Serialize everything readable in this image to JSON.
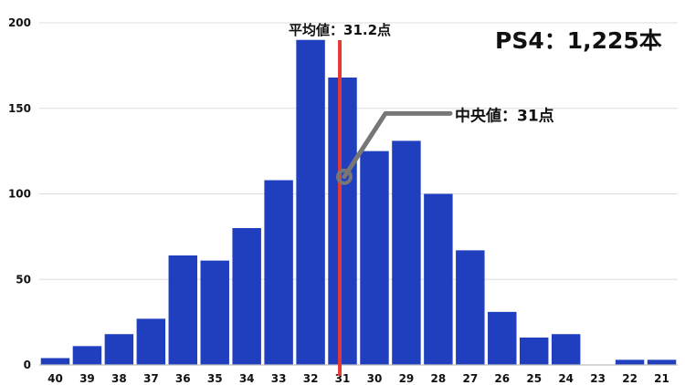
{
  "chart_data": {
    "type": "bar",
    "title": "PS4：1,225本",
    "categories": [
      "40",
      "39",
      "38",
      "37",
      "36",
      "35",
      "34",
      "33",
      "32",
      "31",
      "30",
      "29",
      "28",
      "27",
      "26",
      "25",
      "24",
      "23",
      "22",
      "21"
    ],
    "values": [
      4,
      11,
      18,
      27,
      64,
      61,
      80,
      108,
      190,
      168,
      125,
      131,
      100,
      67,
      31,
      16,
      18,
      0,
      3,
      3
    ],
    "xlabel": "",
    "ylabel": "",
    "ylim": [
      0,
      200
    ],
    "yticks": [
      0,
      50,
      100,
      150,
      200
    ],
    "grid": true,
    "colors": {
      "bar": "#1f3fbf",
      "mean_line": "#e53935",
      "median_marker": "#777777"
    },
    "annotations": {
      "mean_label": "平均値：31.2点",
      "mean_value": 31.2,
      "median_label": "中央値：31点",
      "median_value": 31
    }
  }
}
